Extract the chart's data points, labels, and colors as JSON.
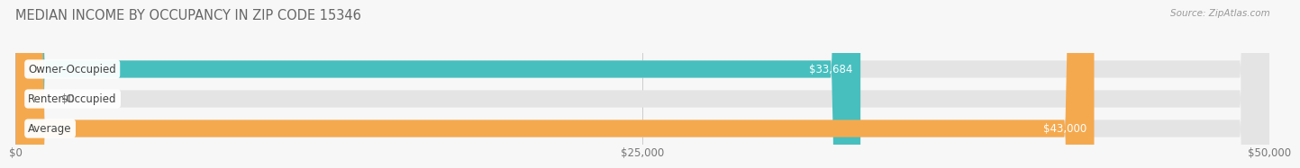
{
  "title": "MEDIAN INCOME BY OCCUPANCY IN ZIP CODE 15346",
  "source_text": "Source: ZipAtlas.com",
  "categories": [
    "Owner-Occupied",
    "Renter-Occupied",
    "Average"
  ],
  "values": [
    33684,
    0,
    43000
  ],
  "bar_colors": [
    "#47BFBF",
    "#C4A8D4",
    "#F5A94E"
  ],
  "bar_bg_color": "#E4E4E4",
  "value_labels": [
    "$33,684",
    "$0",
    "$43,000"
  ],
  "xlim": [
    0,
    50000
  ],
  "xtick_labels": [
    "$0",
    "$25,000",
    "$50,000"
  ],
  "xtick_values": [
    0,
    25000,
    50000
  ],
  "background_color": "#f7f7f7",
  "bar_height": 0.58,
  "title_fontsize": 10.5,
  "axis_fontsize": 8.5,
  "label_fontsize": 8.5,
  "value_fontsize": 8.5
}
